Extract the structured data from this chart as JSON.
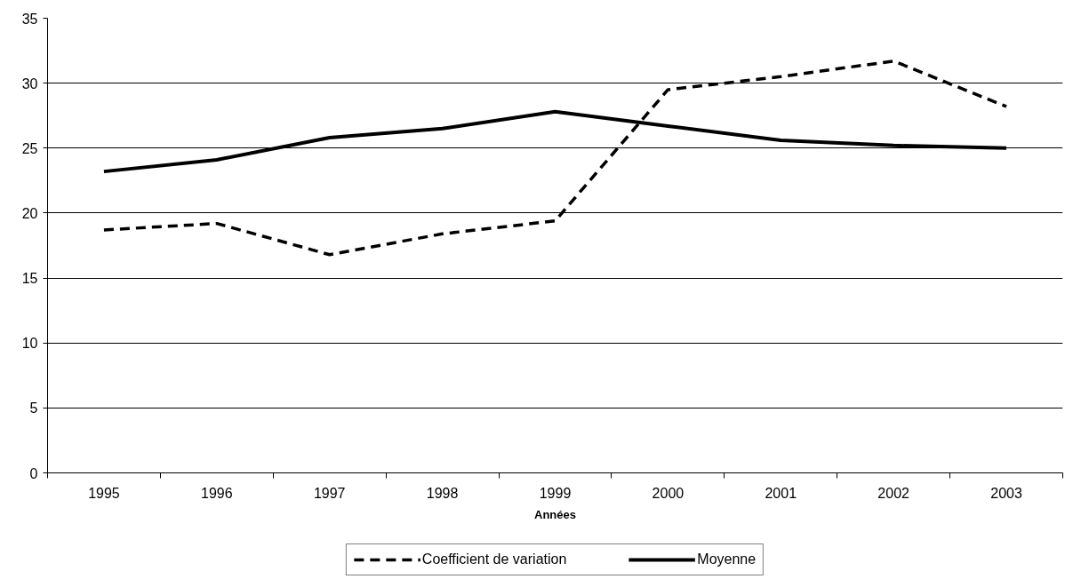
{
  "chart_data": {
    "type": "line",
    "xlabel": "Années",
    "categories": [
      "1995",
      "1996",
      "1997",
      "1998",
      "1999",
      "2000",
      "2001",
      "2002",
      "2003"
    ],
    "series": [
      {
        "name": "Coefficient de variation",
        "color": "#000000",
        "line_style": "dashed",
        "values": [
          18.7,
          19.2,
          16.8,
          18.4,
          19.4,
          29.5,
          30.5,
          31.7,
          28.2
        ]
      },
      {
        "name": "Moyenne",
        "color": "#000000",
        "line_style": "solid",
        "values": [
          23.2,
          24.1,
          25.8,
          26.5,
          27.8,
          26.7,
          25.6,
          25.2,
          25.0
        ]
      }
    ],
    "ylim": [
      0,
      35
    ],
    "yticks": [
      0,
      5,
      10,
      15,
      20,
      25,
      30,
      35
    ],
    "grid": "y",
    "legend": "bottom"
  }
}
